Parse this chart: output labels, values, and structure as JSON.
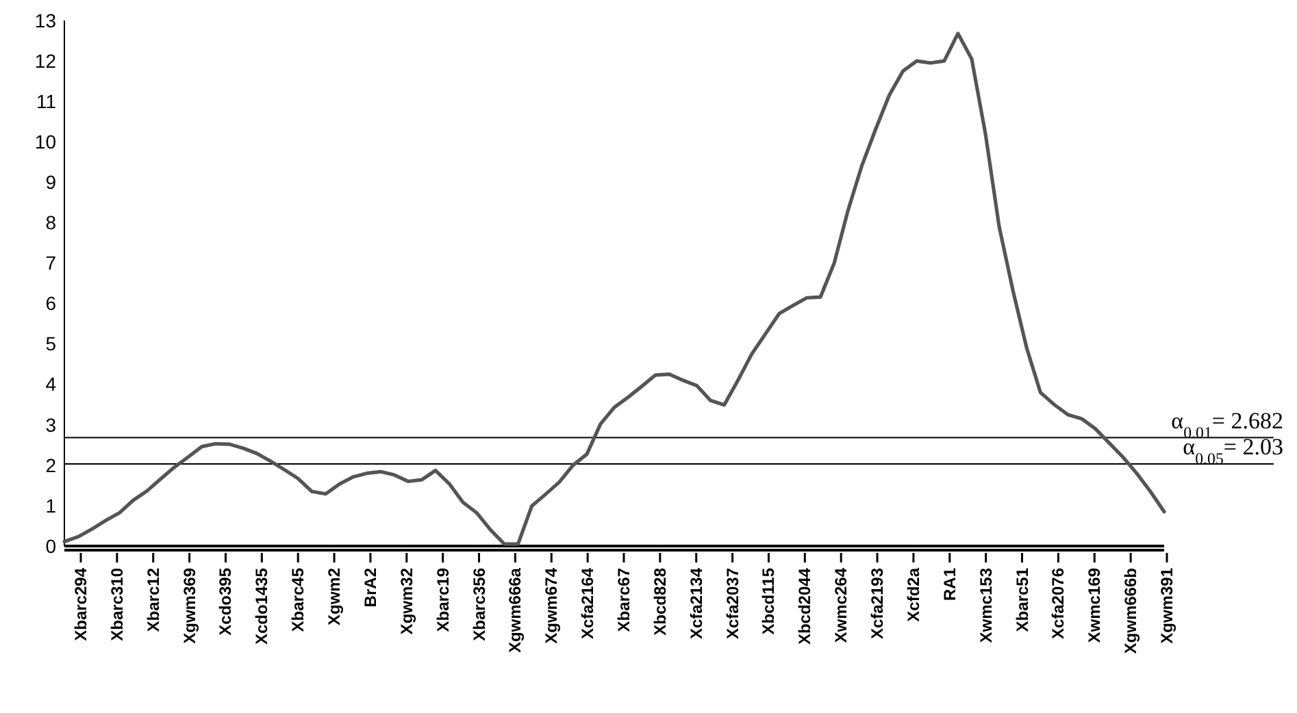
{
  "chart_data": {
    "type": "line",
    "categories": [
      null,
      null,
      null,
      null,
      null,
      null,
      null,
      null,
      null,
      null,
      null,
      null,
      null,
      null,
      null,
      null,
      null,
      null,
      null,
      null,
      null,
      null,
      null,
      null,
      null,
      null,
      null,
      null,
      null,
      null,
      null,
      null,
      null,
      null,
      null,
      null,
      null,
      null,
      null,
      null,
      null,
      null,
      null,
      null,
      null,
      null,
      null,
      null,
      null,
      null,
      null,
      null,
      null,
      null,
      null,
      null,
      null,
      null,
      null,
      null,
      null,
      null,
      null,
      null,
      null,
      null,
      null,
      null,
      null,
      null,
      null,
      null,
      null,
      null,
      null,
      null,
      null,
      null,
      null,
      null,
      null
    ],
    "series": [
      {
        "color": "#555555",
        "values": [
          0.11,
          0.23,
          0.42,
          0.63,
          0.82,
          1.13,
          1.36,
          1.66,
          1.95,
          2.2,
          2.46,
          2.53,
          2.52,
          2.42,
          2.29,
          2.1,
          1.89,
          1.67,
          1.35,
          1.29,
          1.53,
          1.71,
          1.8,
          1.84,
          1.76,
          1.6,
          1.64,
          1.87,
          1.54,
          1.08,
          0.82,
          0.4,
          0.05,
          0.05,
          0.99,
          1.28,
          1.58,
          2.0,
          2.27,
          3.02,
          3.43,
          3.68,
          3.95,
          4.23,
          4.25,
          4.1,
          3.97,
          3.6,
          3.49,
          4.1,
          4.75,
          5.25,
          5.75,
          5.95,
          6.14,
          6.16,
          7.0,
          8.3,
          9.4,
          10.3,
          11.15,
          11.75,
          12.0,
          11.95,
          12.0,
          12.68,
          12.05,
          10.2,
          7.9,
          6.32,
          4.9,
          3.8,
          3.5,
          3.25,
          3.15,
          2.9,
          2.55,
          2.2,
          1.8,
          1.35,
          0.85
        ]
      }
    ],
    "ylim": [
      0,
      13
    ],
    "yticks": [
      0,
      1,
      2,
      3,
      4,
      5,
      6,
      7,
      8,
      9,
      10,
      11,
      12,
      13
    ],
    "tick_labels": "y",
    "grid": false,
    "marker": "none",
    "line_style": "solid",
    "ref_lines": [
      {
        "axis": "y",
        "value": 2.682,
        "label": "α$_{0.01}$= 2.682",
        "color": "#000000"
      },
      {
        "axis": "y",
        "value": 2.03,
        "label": "α$_{0.05}$= 2.03",
        "color": "#000000"
      }
    ],
    "annotations": [
      "Xbarc294",
      "Xbarc310",
      "Xbarc12",
      "Xgwm369",
      "Xcdo395",
      "Xcdo1435",
      "Xbarc45",
      "Xgwm2",
      "BrA2",
      "Xgwm32",
      "Xbarc19",
      "Xbarc356",
      "Xgwm666a",
      "Xgwm674",
      "Xcfa2164",
      "Xbarc67",
      "Xbcd828",
      "Xcfa2134",
      "Xcfa2037",
      "Xbcd115",
      "Xbcd2044",
      "Xwmc264",
      "Xcfa2193",
      "Xcfd2a",
      "RA1",
      "Xwmc153",
      "Xbarc51",
      "Xcfa2076",
      "Xwmc169",
      "Xgwm666b",
      "Xgwm391"
    ]
  }
}
